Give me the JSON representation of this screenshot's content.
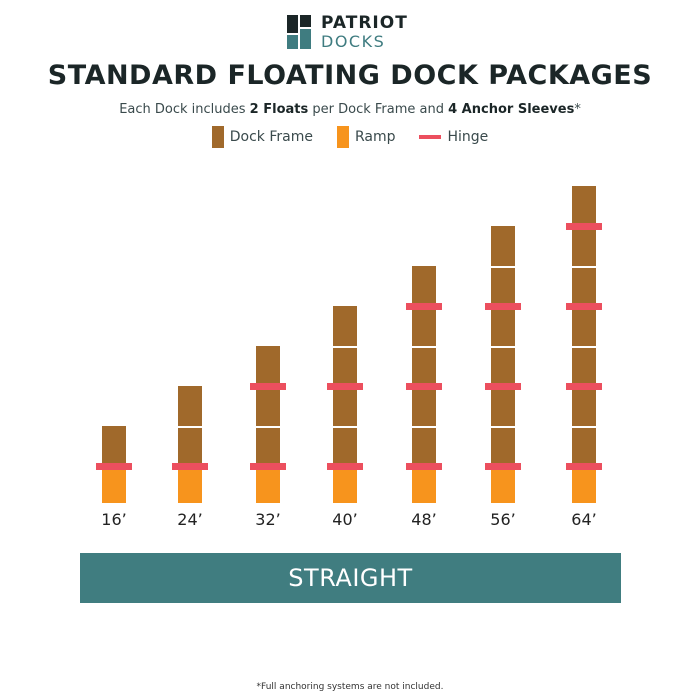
{
  "brand": {
    "line1": "PATRIOT",
    "line2": "DOCKS",
    "dark": "#1b2627",
    "teal": "#3f7c80"
  },
  "title": "STANDARD FLOATING DOCK PACKAGES",
  "subtitle": {
    "pre": "Each Dock includes ",
    "b1": "2 Floats",
    "mid": " per Dock Frame and ",
    "b2": "4 Anchor Sleeves",
    "post": "*"
  },
  "legend": [
    {
      "label": "Dock Frame",
      "color": "#a0692b",
      "icon": "swatch"
    },
    {
      "label": "Ramp",
      "color": "#f7941d",
      "icon": "swatch"
    },
    {
      "label": "Hinge",
      "color": "#ec4f5e",
      "icon": "line"
    }
  ],
  "docks": [
    {
      "label": "16’",
      "frames": 1
    },
    {
      "label": "24’",
      "frames": 2
    },
    {
      "label": "32’",
      "frames": 3
    },
    {
      "label": "40’",
      "frames": 4
    },
    {
      "label": "48’",
      "frames": 5
    },
    {
      "label": "56’",
      "frames": 6
    },
    {
      "label": "64’",
      "frames": 7
    }
  ],
  "banner": "STRAIGHT",
  "footnote": "*Full anchoring systems are not included."
}
